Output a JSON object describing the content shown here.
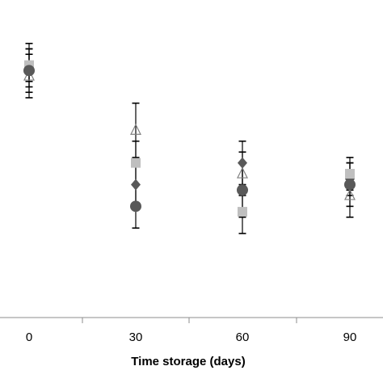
{
  "chart_data": {
    "type": "scatter",
    "title": "",
    "xlabel": "Time storage (days)",
    "ylabel": "",
    "x": [
      0,
      30,
      60,
      90
    ],
    "x_ticks": [
      "0",
      "30",
      "60",
      "90"
    ],
    "grid": false,
    "legend": "none",
    "series": [
      {
        "marker": "diamond",
        "color": "#595959",
        "values": [
          0.88,
          0.66,
          0.7,
          0.67
        ],
        "error": [
          0.03,
          0.04,
          0.04,
          0.03
        ]
      },
      {
        "marker": "square",
        "color": "#bfbfbf",
        "values": [
          0.88,
          0.7,
          0.61,
          0.68
        ],
        "error": [
          0.04,
          0.04,
          0.04,
          0.03
        ]
      },
      {
        "marker": "triangle-open",
        "color": "#808080",
        "values": [
          0.86,
          0.76,
          0.68,
          0.64
        ],
        "error": [
          0.04,
          0.05,
          0.04,
          0.04
        ]
      },
      {
        "marker": "circle",
        "color": "#595959",
        "values": [
          0.87,
          0.62,
          0.65,
          0.66
        ],
        "error": [
          0.04,
          0.04,
          0.05,
          0.04
        ]
      }
    ]
  }
}
